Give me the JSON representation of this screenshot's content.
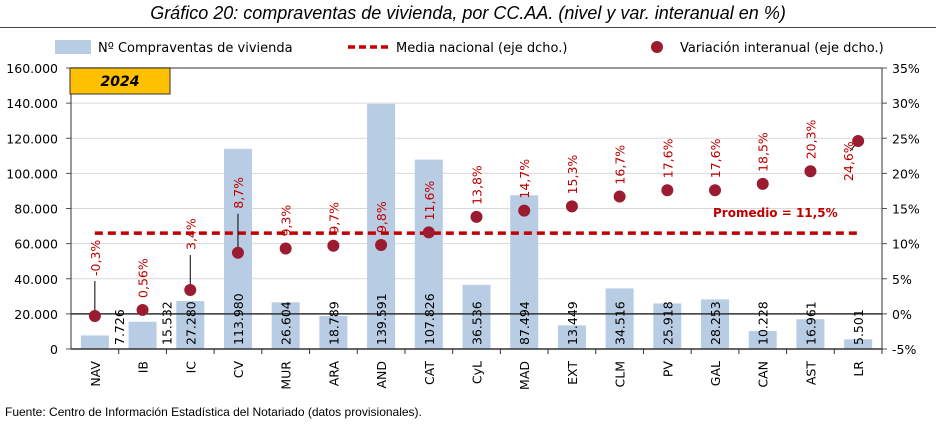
{
  "title": "Gráfico 20: compraventas de vivienda, por CC.AA. (nivel y var. interanual en %)",
  "footer": "Fuente: Centro de Información Estadística del Notariado (datos provisionales).",
  "year_badge": "2024",
  "average_label": "Promedio = 11,5%",
  "colors": {
    "bar": "#b8cce4",
    "dot": "#9b1b30",
    "line": "#c00000",
    "badge": "#ffc000"
  },
  "chart_data": {
    "type": "bar",
    "title": "Gráfico 20: compraventas de vivienda, por CC.AA. (nivel y var. interanual en %)",
    "categories": [
      "NAV",
      "IB",
      "IC",
      "CV",
      "MUR",
      "ARA",
      "AND",
      "CAT",
      "CyL",
      "MAD",
      "EXT",
      "CLM",
      "PV",
      "GAL",
      "CAN",
      "AST",
      "LR"
    ],
    "series": [
      {
        "name": "Nº Compraventas de vivienda",
        "type": "bar",
        "axis": "left",
        "values": [
          7726,
          15532,
          27280,
          113980,
          26604,
          18789,
          139591,
          107826,
          36536,
          87494,
          13449,
          34516,
          25918,
          28253,
          10228,
          16961,
          5501
        ],
        "labels": [
          "7.726",
          "15.532",
          "27.280",
          "113.980",
          "26.604",
          "18.789",
          "139.591",
          "107.826",
          "36.536",
          "87.494",
          "13.449",
          "34.516",
          "25.918",
          "28.253",
          "10.228",
          "16.961",
          "5.501"
        ]
      },
      {
        "name": "Media nacional (eje dcho.)",
        "type": "line",
        "axis": "right",
        "value": 11.5
      },
      {
        "name": "Variación interanual (eje dcho.)",
        "type": "scatter",
        "axis": "right",
        "values": [
          -0.3,
          0.56,
          3.4,
          8.7,
          9.3,
          9.7,
          9.8,
          11.6,
          13.8,
          14.7,
          15.3,
          16.7,
          17.6,
          17.6,
          18.5,
          20.3,
          24.6
        ],
        "labels": [
          "-0,3%",
          "0,56%",
          "3,4%",
          "8,7%",
          "9,3%",
          "9,7%",
          "9,8%",
          "11,6%",
          "13,8%",
          "14,7%",
          "15,3%",
          "16,7%",
          "17,6%",
          "17,6%",
          "18,5%",
          "20,3%",
          "24,6%"
        ]
      }
    ],
    "ylim_left": [
      0,
      160000
    ],
    "yticks_left": [
      "0",
      "20.000",
      "40.000",
      "60.000",
      "80.000",
      "100.000",
      "120.000",
      "140.000",
      "160.000"
    ],
    "ylim_right": [
      -5,
      35
    ],
    "yticks_right": [
      "-5%",
      "0%",
      "5%",
      "10%",
      "15%",
      "20%",
      "25%",
      "30%",
      "35%"
    ],
    "legend_position": "top",
    "grid": true
  }
}
